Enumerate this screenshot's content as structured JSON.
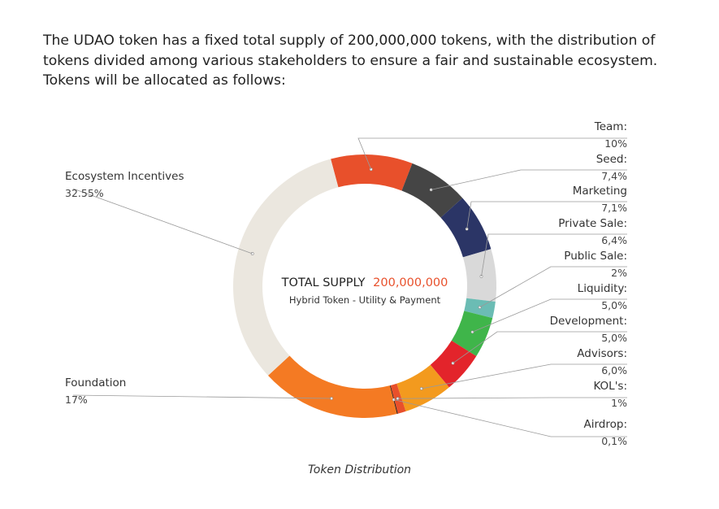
{
  "intro": {
    "lines": [
      "The UDAO token has a fixed total supply of 200,000,000 tokens, with the distribution of",
      "tokens divided among various stakeholders to ensure a fair and sustainable ecosystem.",
      "Tokens will be allocated as follows:"
    ]
  },
  "chart_data": {
    "type": "pie",
    "style": "donut",
    "center": {
      "title_prefix": "TOTAL SUPPLY",
      "title_value": "200,000,000",
      "subtitle": "Hybrid Token - Utility & Payment",
      "value_color": "#e8502b"
    },
    "slices": [
      {
        "name": "Team:",
        "value": 10,
        "label": "10%",
        "color": "#e8502b"
      },
      {
        "name": "Seed:",
        "value": 7.4,
        "label": "7,4%",
        "color": "#454545"
      },
      {
        "name": "Marketing",
        "value": 7.1,
        "label": "7,1%",
        "color": "#2b3566"
      },
      {
        "name": "Private Sale:",
        "value": 6.4,
        "label": "6,4%",
        "color": "#d9d9d9"
      },
      {
        "name": "Public Sale:",
        "value": 2,
        "label": "2%",
        "color": "#6bbcb4"
      },
      {
        "name": "Liquidity:",
        "value": 5.0,
        "label": "5,0%",
        "color": "#3fb54a"
      },
      {
        "name": "Development:",
        "value": 5.0,
        "label": "5,0%",
        "color": "#e3242b"
      },
      {
        "name": "Advisors:",
        "value": 6.0,
        "label": "6,0%",
        "color": "#f39a1e"
      },
      {
        "name": "KOL's:",
        "value": 1,
        "label": "1%",
        "color": "#e8502b"
      },
      {
        "name": "Airdrop:",
        "value": 0.1,
        "label": "0,1%",
        "color": "#111111"
      },
      {
        "name": "Foundation",
        "value": 17,
        "label": "17%",
        "color": "#f47a23"
      },
      {
        "name": "Ecosystem Incentives",
        "value": 32.55,
        "label": "32.55%",
        "color": "#ebe7df"
      }
    ],
    "caption": "Token Distribution"
  }
}
